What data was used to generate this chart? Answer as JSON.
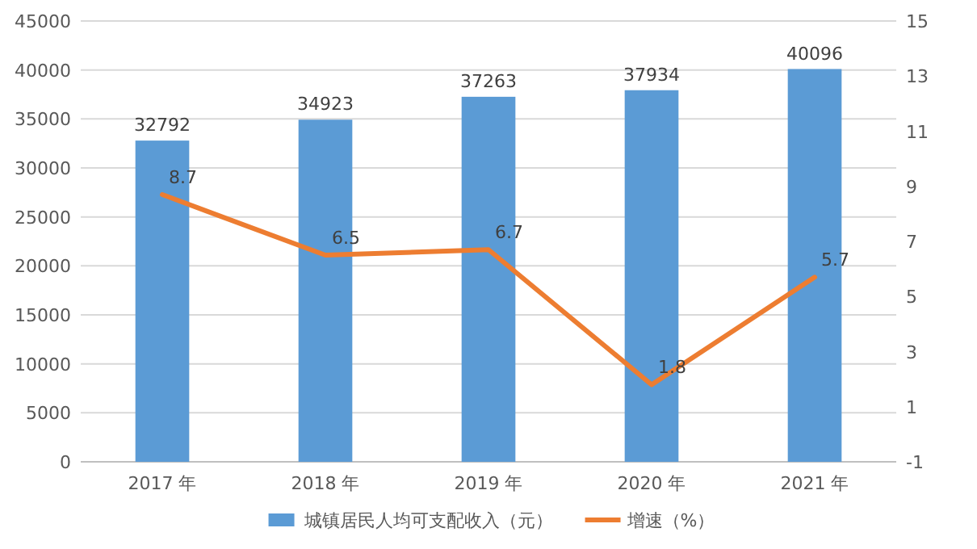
{
  "chart_data": {
    "type": "bar",
    "categories": [
      "2017 年",
      "2018 年",
      "2019 年",
      "2020 年",
      "2021 年"
    ],
    "series": [
      {
        "name": "城镇居民人均可支配收入（元）",
        "color": "#5b9bd5",
        "values": [
          32792,
          34923,
          37263,
          37934,
          40096
        ]
      },
      {
        "name": "增速（%）",
        "type": "line",
        "axis": "y2",
        "color": "#ed7d31",
        "values": [
          8.7,
          6.5,
          6.7,
          1.8,
          5.7
        ]
      }
    ],
    "ylim": [
      0,
      45000
    ],
    "yticks": [
      0,
      5000,
      10000,
      15000,
      20000,
      25000,
      30000,
      35000,
      40000,
      45000
    ],
    "y2lim": [
      -1,
      15
    ],
    "y2ticks": [
      -1,
      1,
      3,
      5,
      7,
      9,
      11,
      13,
      15
    ],
    "grid": "y",
    "legend": "bottom",
    "data_labels": true
  }
}
